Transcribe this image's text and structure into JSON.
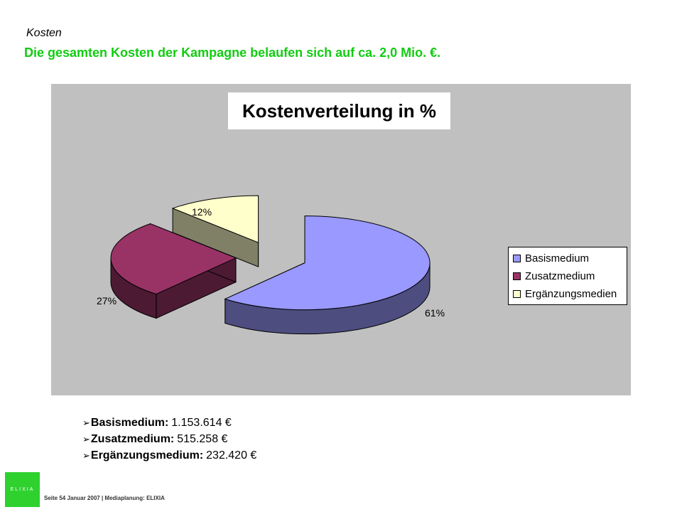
{
  "page": {
    "section_label": "Kosten",
    "headline": "Die gesamten Kosten der Kampagne belaufen sich auf ca. 2,0 Mio. €.",
    "headline_color": "#11cc11"
  },
  "chart_data": {
    "type": "pie",
    "style": "3d-exploded",
    "title": "Kostenverteilung in %",
    "categories": [
      "Basismedium",
      "Zusatzmedium",
      "Ergänzungsmedien"
    ],
    "values": [
      61,
      27,
      12
    ],
    "data_labels": [
      "61%",
      "27%",
      "12%"
    ],
    "colors": [
      "#9999ff",
      "#993366",
      "#ffffcc"
    ],
    "side_colors": [
      "#4d4d80",
      "#4d1a33",
      "#808066"
    ],
    "legend_position": "right",
    "background": "#c0c0c0"
  },
  "details": [
    {
      "name": "Basismedium:",
      "value": "1.153.614 €"
    },
    {
      "name": "Zusatzmedium:",
      "value": "515.258 €"
    },
    {
      "name": "Ergänzungsmedium:",
      "value": "232.420 €"
    }
  ],
  "bullet_glyph": "➢",
  "logo_text": "ELIXIA",
  "footer": "Seite 54 Januar 2007 | Mediaplanung: ELIXIA"
}
